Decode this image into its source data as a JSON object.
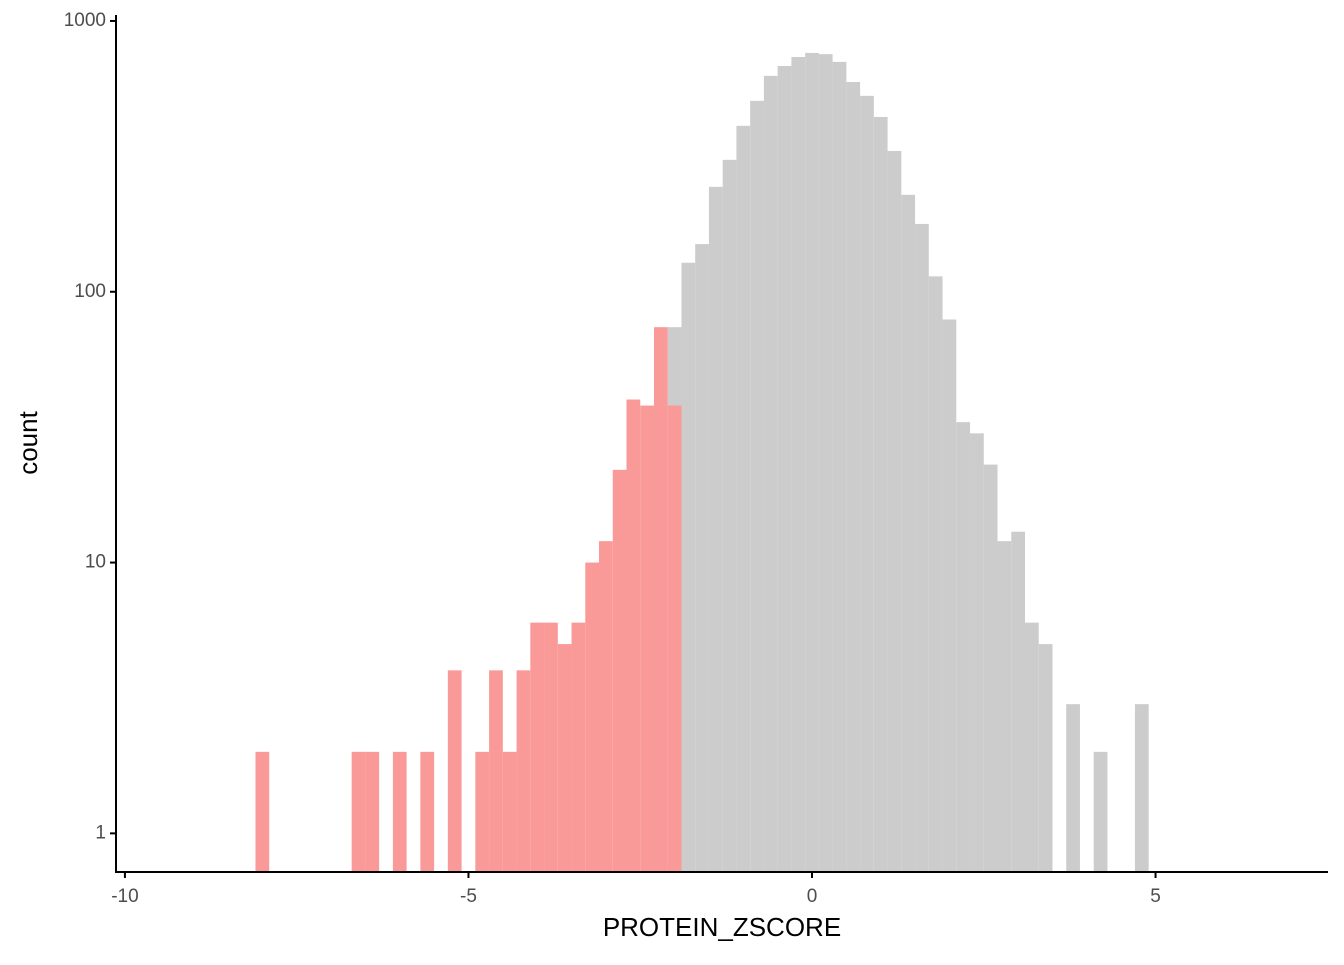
{
  "chart_data": {
    "type": "histogram",
    "x_label": "PROTEIN_ZSCORE",
    "y_label": "count",
    "bins": [
      -8.1,
      -7.9,
      -7.7,
      -7.5,
      -7.3,
      -7.1,
      -6.9,
      -6.7,
      -6.5,
      -6.3,
      -6.1,
      -5.9,
      -5.7,
      -5.5,
      -5.3,
      -5.1,
      -4.9,
      -4.7,
      -4.5,
      -4.3,
      -4.1,
      -3.9,
      -3.7,
      -3.5,
      -3.3,
      -3.1,
      -2.9,
      -2.7,
      -2.5,
      -2.3,
      -2.1,
      -1.9,
      -1.7,
      -1.5,
      -1.3,
      -1.1,
      -0.9,
      -0.7,
      -0.5,
      -0.3,
      -0.1,
      0.1,
      0.3,
      0.5,
      0.7,
      0.9,
      1.1,
      1.3,
      1.5,
      1.7,
      1.9,
      2.1,
      2.3,
      2.5,
      2.7,
      2.9,
      3.1,
      3.3,
      3.5,
      3.7,
      3.9,
      4.1,
      4.3,
      4.5,
      4.7,
      4.9
    ],
    "series": [
      {
        "color": "#f99a99",
        "values": [
          2,
          0,
          0,
          0,
          0,
          0,
          0,
          2,
          2,
          0,
          2,
          0,
          2,
          0,
          4,
          0,
          2,
          4,
          2,
          4,
          6,
          6,
          5,
          6,
          10,
          12,
          22,
          40,
          38,
          74,
          38,
          0,
          0,
          0,
          0,
          0,
          0,
          0,
          0,
          0,
          0,
          0,
          0,
          0,
          0,
          0,
          0,
          0,
          0,
          0,
          0,
          0,
          0,
          0,
          0,
          0,
          0,
          0,
          0,
          0,
          0,
          0,
          0,
          0,
          0
        ]
      },
      {
        "color": "#cccccc",
        "values": [
          0,
          0,
          0,
          0,
          0,
          0,
          0,
          0,
          0,
          0,
          0,
          0,
          0,
          0,
          0,
          0,
          0,
          0,
          0,
          0,
          0,
          0,
          0,
          0,
          0,
          0,
          0,
          0,
          0,
          0,
          74,
          128,
          150,
          244,
          307,
          410,
          507,
          627,
          682,
          736,
          762,
          754,
          706,
          595,
          529,
          442,
          331,
          228,
          178,
          114,
          79,
          33,
          30,
          23,
          12,
          13,
          6,
          5,
          0,
          3,
          0,
          2,
          0,
          0,
          3
        ]
      }
    ],
    "xlim": [
      -10.13,
      7.51
    ],
    "xticks": [
      -10,
      -5,
      0,
      5
    ],
    "ylim": [
      0.72,
      1052
    ],
    "yticks": [
      1,
      10,
      100,
      1000
    ],
    "y_scale": "log"
  }
}
